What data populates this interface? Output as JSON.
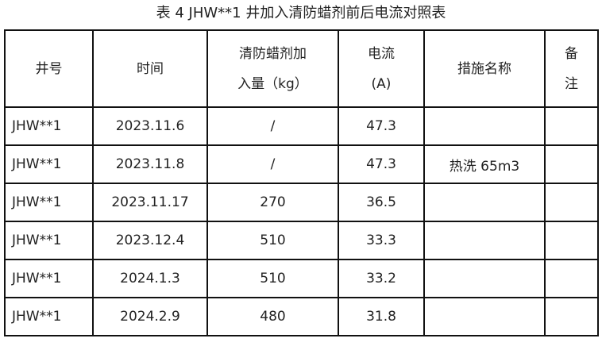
{
  "title": "表 4   JHW**1 井加入清防蜡剂前后电流对照表",
  "headers": {
    "well": "井号",
    "time": "时间",
    "dose1": "清防蜡剂加",
    "dose2": "入量（kg）",
    "current1": "电流",
    "current2": "(A)",
    "measure": "措施名称",
    "remark1": "备",
    "remark2": "注"
  },
  "rows": [
    {
      "well": "JHW**1",
      "time": "2023.11.6",
      "dose": "/",
      "current": "47.3",
      "measure": "",
      "remark": ""
    },
    {
      "well": "JHW**1",
      "time": "2023.11.8",
      "dose": "/",
      "current": "47.3",
      "measure": "热洗 65m3",
      "remark": ""
    },
    {
      "well": "JHW**1",
      "time": "2023.11.17",
      "dose": "270",
      "current": "36.5",
      "measure": "",
      "remark": ""
    },
    {
      "well": "JHW**1",
      "time": "2023.12.4",
      "dose": "510",
      "current": "33.3",
      "measure": "",
      "remark": ""
    },
    {
      "well": "JHW**1",
      "time": "2024.1.3",
      "dose": "510",
      "current": "33.2",
      "measure": "",
      "remark": ""
    },
    {
      "well": "JHW**1",
      "time": "2024.2.9",
      "dose": "480",
      "current": "31.8",
      "measure": "",
      "remark": ""
    }
  ]
}
